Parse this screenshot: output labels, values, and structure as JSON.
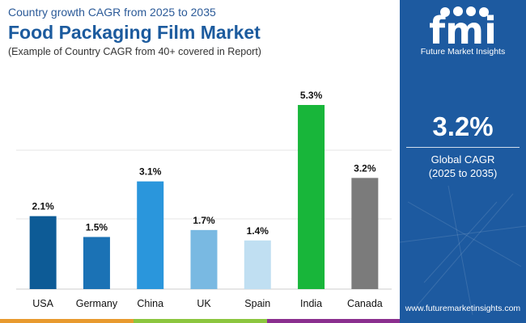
{
  "header": {
    "subtitle": "Country growth CAGR from 2025 to 2035",
    "title": "Food Packaging Film Market",
    "note": "(Example of Country CAGR from 40+ covered in Report)"
  },
  "chart_data": {
    "type": "bar",
    "categories": [
      "USA",
      "Germany",
      "China",
      "UK",
      "Spain",
      "India",
      "Canada"
    ],
    "values": [
      2.1,
      1.5,
      3.1,
      1.7,
      1.4,
      5.3,
      3.2
    ],
    "value_labels": [
      "2.1%",
      "1.5%",
      "3.1%",
      "1.7%",
      "1.4%",
      "5.3%",
      "3.2%"
    ],
    "colors": [
      "#0d5b96",
      "#1b72b5",
      "#2a96dc",
      "#79b9e2",
      "#c0dff2",
      "#18b63a",
      "#7b7b7b"
    ],
    "ylim": [
      0,
      5.3
    ],
    "grid": true,
    "title": "",
    "xlabel": "",
    "ylabel": ""
  },
  "panel": {
    "logo_text": "fmi",
    "logo_caption": "Future Market Insights",
    "cagr_value": "3.2%",
    "cagr_label": "Global CAGR",
    "cagr_period": "(2025 to 2035)",
    "url": "www.futuremarketinsights.com",
    "background": "#1d5aa0"
  },
  "footer": {
    "colors": [
      "#e89a2e",
      "#8cc63f",
      "#8b2f8f",
      "#1d5aa0"
    ]
  }
}
